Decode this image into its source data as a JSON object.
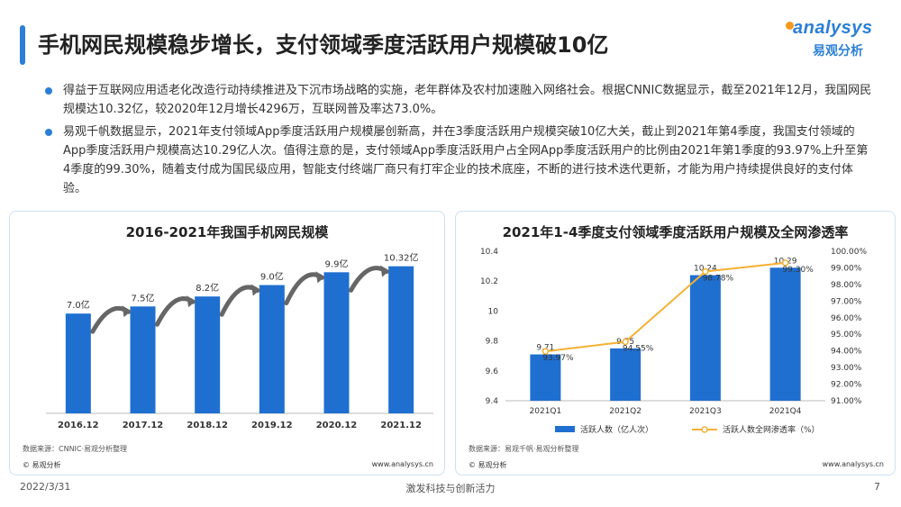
{
  "header": {
    "title": "手机网民规模稳步增长，支付领域季度活跃用户规模破10亿",
    "logo_en": "analysys",
    "logo_cn": "易观分析"
  },
  "bullets": [
    "得益于互联网应用适老化改造行动持续推进及下沉市场战略的实施，老年群体及农村加速融入网络社会。根据CNNIC数据显示，截至2021年12月，我国网民规模达10.32亿，较2020年12月增长4296万，互联网普及率达73.0%。",
    "易观千帆数据显示，2021年支付领域App季度活跃用户规模屡创新高，并在3季度活跃用户规模突破10亿大关，截止到2021年第4季度，我国支付领域的App季度活跃用户规模高达10.29亿人次。值得注意的是，支付领域App季度活跃用户占全网App季度活跃用户的比例由2021年第1季度的93.97%上升至第4季度的99.30%，随着支付成为国民级应用，智能支付终端厂商只有打牢企业的技术底座，不断的进行技术迭代更新，才能为用户持续提供良好的支付体验。"
  ],
  "left_panel": {
    "source": "数据来源：CNNIC·易观分析整理",
    "foot_left": "© 易观分析",
    "foot_right": "www.analysys.cn"
  },
  "right_panel": {
    "source": "数据来源：易观千帆·易观分析整理",
    "foot_left": "© 易观分析",
    "foot_right": "www.analysys.cn"
  },
  "footer": {
    "date": "2022/3/31",
    "slogan": "激发科技与创新活力",
    "page": "7"
  },
  "colors": {
    "accent": "#2b7fd6",
    "bar": "#1f6fd1",
    "line": "#f5b133",
    "arrow": "#666666"
  },
  "chart_data": [
    {
      "type": "bar",
      "title": "2016-2021年我国手机网民规模",
      "categories": [
        "2016.12",
        "2017.12",
        "2018.12",
        "2019.12",
        "2020.12",
        "2021.12"
      ],
      "values": [
        7.0,
        7.5,
        8.2,
        9.0,
        9.9,
        10.32
      ],
      "data_labels": [
        "7.0亿",
        "7.5亿",
        "8.2亿",
        "9.0亿",
        "9.9亿",
        "10.32亿"
      ],
      "ylim": [
        0,
        11.5
      ],
      "grid": false,
      "legend": "none"
    },
    {
      "type": "bar+line",
      "title": "2021年1-4季度支付领域季度活跃用户规模及全网渗透率",
      "categories": [
        "2021Q1",
        "2021Q2",
        "2021Q3",
        "2021Q4"
      ],
      "series": [
        {
          "name": "活跃人数（亿人次）",
          "type": "bar",
          "axis": "left",
          "values": [
            9.71,
            9.75,
            10.24,
            10.29
          ],
          "data_labels": [
            "9.71",
            "9.75",
            "10.24",
            "10.29"
          ]
        },
        {
          "name": "活跃人数全网渗透率（%）",
          "type": "line",
          "axis": "right",
          "values": [
            93.97,
            94.55,
            98.78,
            99.3
          ],
          "data_labels": [
            "93.97%",
            "94.55%",
            "98.78%",
            "99.30%"
          ]
        }
      ],
      "y_left": {
        "ylim": [
          9.4,
          10.4
        ],
        "ticks": [
          "9.4",
          "9.6",
          "9.8",
          "10",
          "10.2",
          "10.4"
        ]
      },
      "y_right": {
        "ylim": [
          91,
          100
        ],
        "ticks": [
          "91.00%",
          "92.00%",
          "93.00%",
          "94.00%",
          "95.00%",
          "96.00%",
          "97.00%",
          "98.00%",
          "99.00%",
          "100.00%"
        ]
      },
      "grid": false,
      "legend": "bottom"
    }
  ]
}
